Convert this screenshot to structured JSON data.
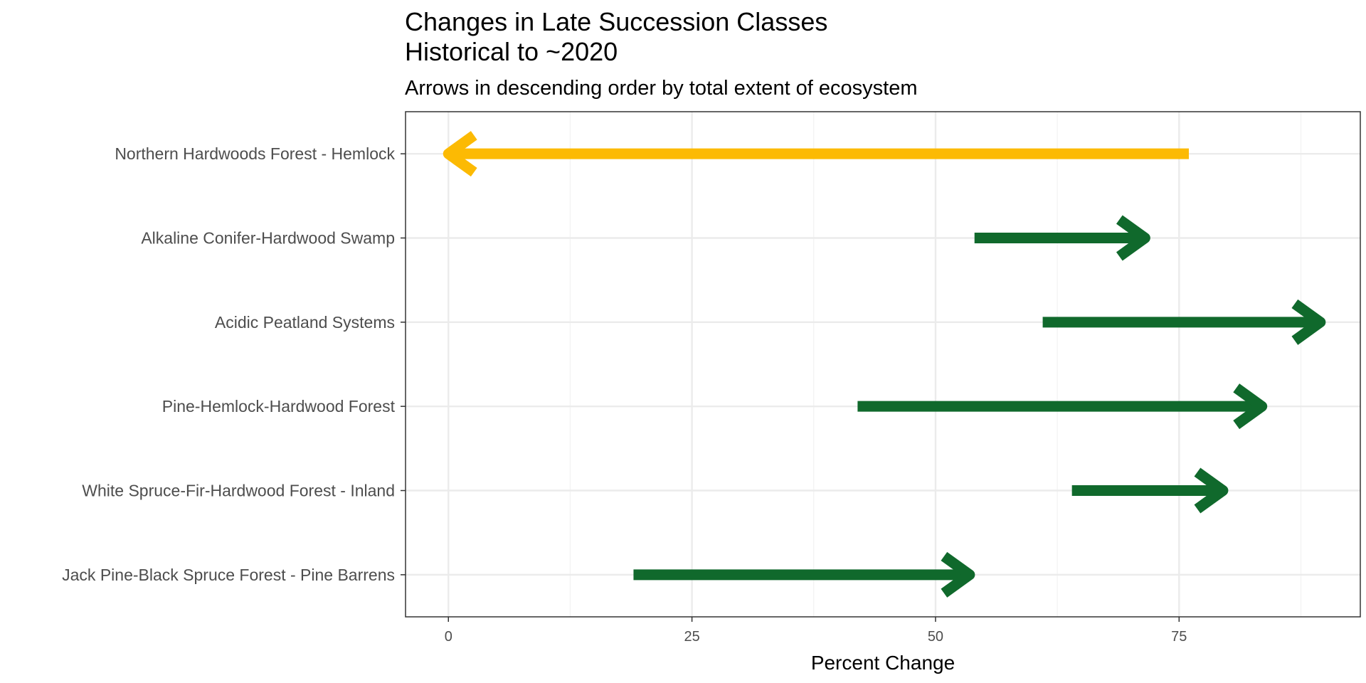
{
  "chart_data": {
    "type": "arrow",
    "title": "Changes in Late Succession Classes",
    "title_line2": "Historical to ~2020",
    "subtitle": "Arrows in descending order by total extent of ecosystem",
    "xlabel": "Percent Change",
    "ylabel": "",
    "xlim": [
      -4.4,
      93.6
    ],
    "x_ticks": [
      0,
      25,
      50,
      75
    ],
    "x_tick_labels": [
      "0",
      "25",
      "50",
      "75"
    ],
    "x_minor_gridlines": [
      12.5,
      37.5,
      62.5,
      87.5
    ],
    "grid": true,
    "categories": [
      "Northern Hardwoods Forest - Hemlock",
      "Alkaline Conifer-Hardwood Swamp",
      "Acidic Peatland Systems",
      "Pine-Hemlock-Hardwood Forest",
      "White Spruce-Fir-Hardwood Forest - Inland",
      "Jack Pine-Black Spruce Forest - Pine Barrens"
    ],
    "series": [
      {
        "category": "Northern Hardwoods Forest - Hemlock",
        "from": 76,
        "to": 0,
        "color": "#fcba03"
      },
      {
        "category": "Alkaline Conifer-Hardwood Swamp",
        "from": 54,
        "to": 71.5,
        "color": "#10692c"
      },
      {
        "category": "Acidic Peatland Systems",
        "from": 61,
        "to": 89.5,
        "color": "#10692c"
      },
      {
        "category": "Pine-Hemlock-Hardwood Forest",
        "from": 42,
        "to": 83.5,
        "color": "#10692c"
      },
      {
        "category": "White Spruce-Fir-Hardwood Forest - Inland",
        "from": 64,
        "to": 79.5,
        "color": "#10692c"
      },
      {
        "category": "Jack Pine-Black Spruce Forest - Pine Barrens",
        "from": 19,
        "to": 53.5,
        "color": "#10692c"
      }
    ]
  }
}
